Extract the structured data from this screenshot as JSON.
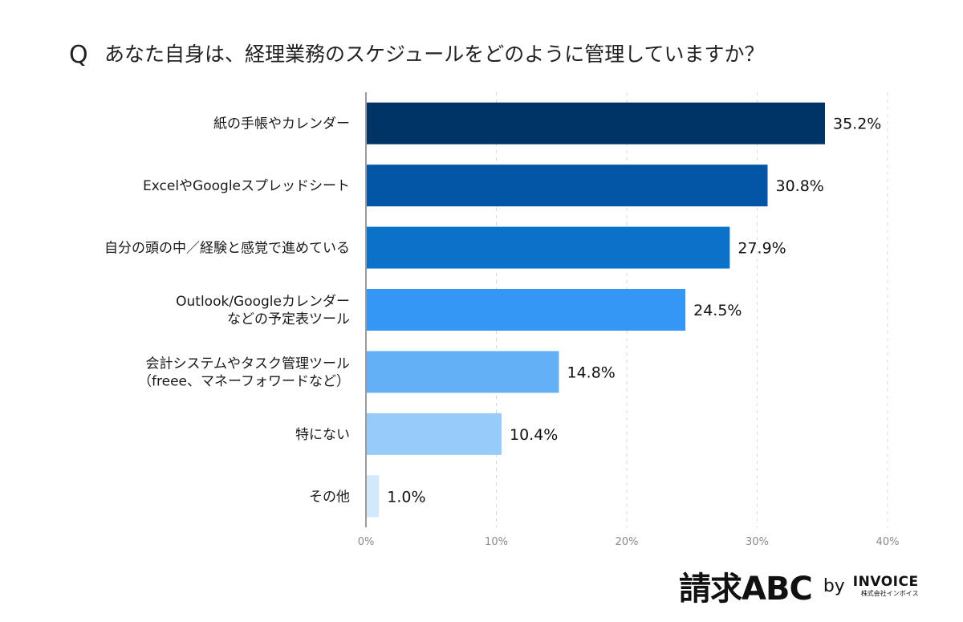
{
  "question": {
    "mark": "Q",
    "text": "あなた自身は、経理業務のスケジュールをどのように管理していますか？"
  },
  "chart_data": {
    "type": "bar",
    "orientation": "horizontal",
    "title": "あなた自身は、経理業務のスケジュールをどのように管理していますか？",
    "categories": [
      [
        "紙の手帳やカレンダー"
      ],
      [
        "ExcelやGoogleスプレッドシート"
      ],
      [
        "自分の頭の中／経験と感覚で進めている"
      ],
      [
        "Outlook/Googleカレンダー",
        "などの予定表ツール"
      ],
      [
        "会計システムやタスク管理ツール",
        "（freee、マネーフォワードなど）"
      ],
      [
        "特にない"
      ],
      [
        "その他"
      ]
    ],
    "values": [
      35.2,
      30.8,
      27.9,
      24.5,
      14.8,
      10.4,
      1.0
    ],
    "value_labels": [
      "35.2%",
      "30.8%",
      "27.9%",
      "24.5%",
      "14.8%",
      "10.4%",
      "1.0%"
    ],
    "colors": [
      "#003366",
      "#0356A5",
      "#0A72C9",
      "#3497F5",
      "#64B0F7",
      "#97CBFA",
      "#D2E8FD"
    ],
    "xlim": [
      0,
      40
    ],
    "xticks": [
      0,
      10,
      20,
      30,
      40
    ],
    "xtick_labels": [
      "0%",
      "10%",
      "20%",
      "30%",
      "40%"
    ],
    "grid": true
  },
  "brand": {
    "logo": "請求ABC",
    "by": "by",
    "company": "INVOICE",
    "company_sub": "株式会社インボイス"
  }
}
